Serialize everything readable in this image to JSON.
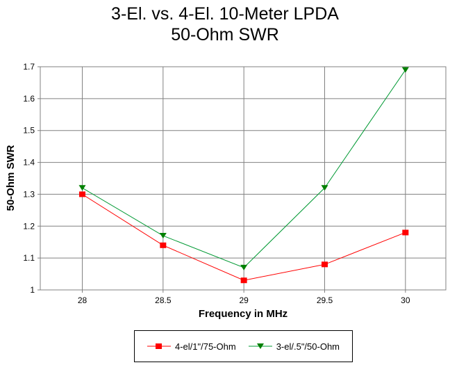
{
  "chart_data": {
    "type": "line",
    "title": "3-El. vs. 4-El. 10-Meter LPDA",
    "subtitle": "50-Ohm SWR",
    "xlabel": "Frequency in MHz",
    "ylabel": "50-Ohm SWR",
    "x": [
      28,
      28.5,
      29,
      29.5,
      30
    ],
    "x_tick_labels": [
      "28",
      "28.5",
      "29",
      "29.5",
      "30"
    ],
    "y_ticks": [
      1,
      1.1,
      1.2,
      1.3,
      1.4,
      1.5,
      1.6,
      1.7
    ],
    "y_tick_labels": [
      "1",
      "1.1",
      "1.2",
      "1.3",
      "1.4",
      "1.5",
      "1.6",
      "1.7"
    ],
    "xlim": [
      27.74,
      30.25
    ],
    "ylim": [
      1,
      1.7
    ],
    "grid": true,
    "legend_position": "bottom",
    "series": [
      {
        "name": "4-el/1\"/75-Ohm",
        "color": "#ff0000",
        "marker": "square",
        "values": [
          1.3,
          1.14,
          1.03,
          1.08,
          1.18
        ]
      },
      {
        "name": "3-el/.5\"/50-Ohm",
        "color": "#008000",
        "marker": "triangle-down",
        "values": [
          1.32,
          1.17,
          1.07,
          1.32,
          1.69
        ]
      }
    ]
  }
}
